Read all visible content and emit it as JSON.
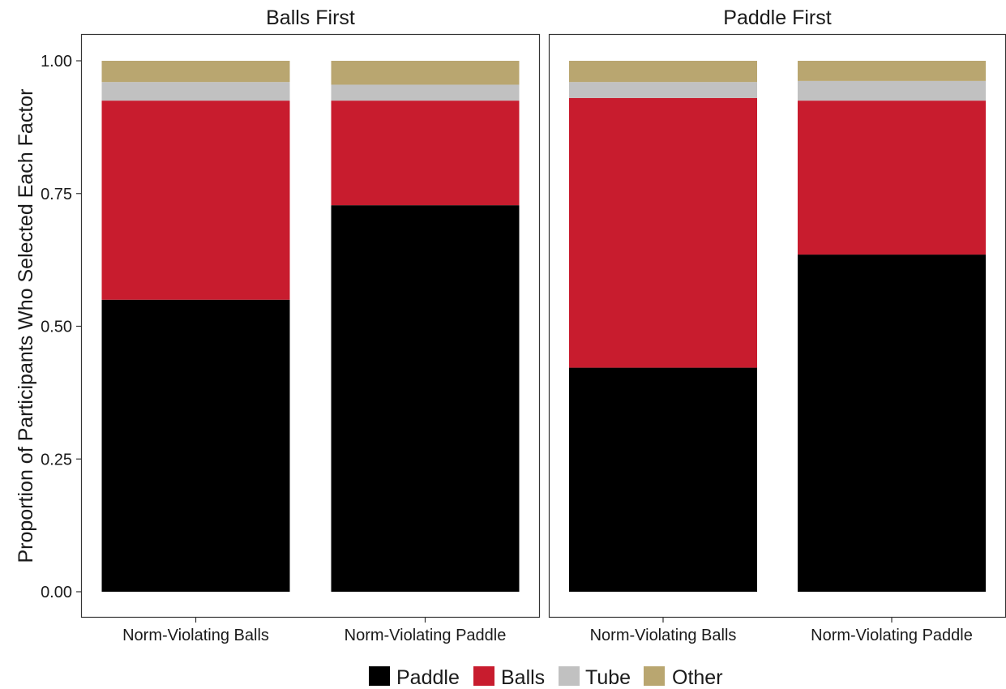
{
  "chart_data": {
    "type": "bar",
    "stacked": true,
    "ylabel": "Proportion of Participants Who Selected Each Factor",
    "xlabel": "",
    "ylim": [
      0,
      1
    ],
    "y_ticks": [
      "0.00",
      "0.25",
      "0.50",
      "0.75",
      "1.00"
    ],
    "grid": false,
    "legend_position": "bottom",
    "colors": {
      "Paddle": "#000000",
      "Balls": "#c81c2e",
      "Tube": "#c1c1c1",
      "Other": "#b9a670"
    },
    "series_order": [
      "Paddle",
      "Balls",
      "Tube",
      "Other"
    ],
    "legend": [
      "Paddle",
      "Balls",
      "Tube",
      "Other"
    ],
    "panels": [
      {
        "title": "Balls First",
        "categories": [
          "Norm-Violating Balls",
          "Norm-Violating Paddle"
        ],
        "series": [
          {
            "name": "Paddle",
            "values": [
              0.55,
              0.728
            ]
          },
          {
            "name": "Balls",
            "values": [
              0.375,
              0.197
            ]
          },
          {
            "name": "Tube",
            "values": [
              0.035,
              0.03
            ]
          },
          {
            "name": "Other",
            "values": [
              0.04,
              0.045
            ]
          }
        ]
      },
      {
        "title": "Paddle First",
        "categories": [
          "Norm-Violating Balls",
          "Norm-Violating Paddle"
        ],
        "series": [
          {
            "name": "Paddle",
            "values": [
              0.422,
              0.635
            ]
          },
          {
            "name": "Balls",
            "values": [
              0.508,
              0.29
            ]
          },
          {
            "name": "Tube",
            "values": [
              0.03,
              0.037
            ]
          },
          {
            "name": "Other",
            "values": [
              0.04,
              0.038
            ]
          }
        ]
      }
    ]
  }
}
